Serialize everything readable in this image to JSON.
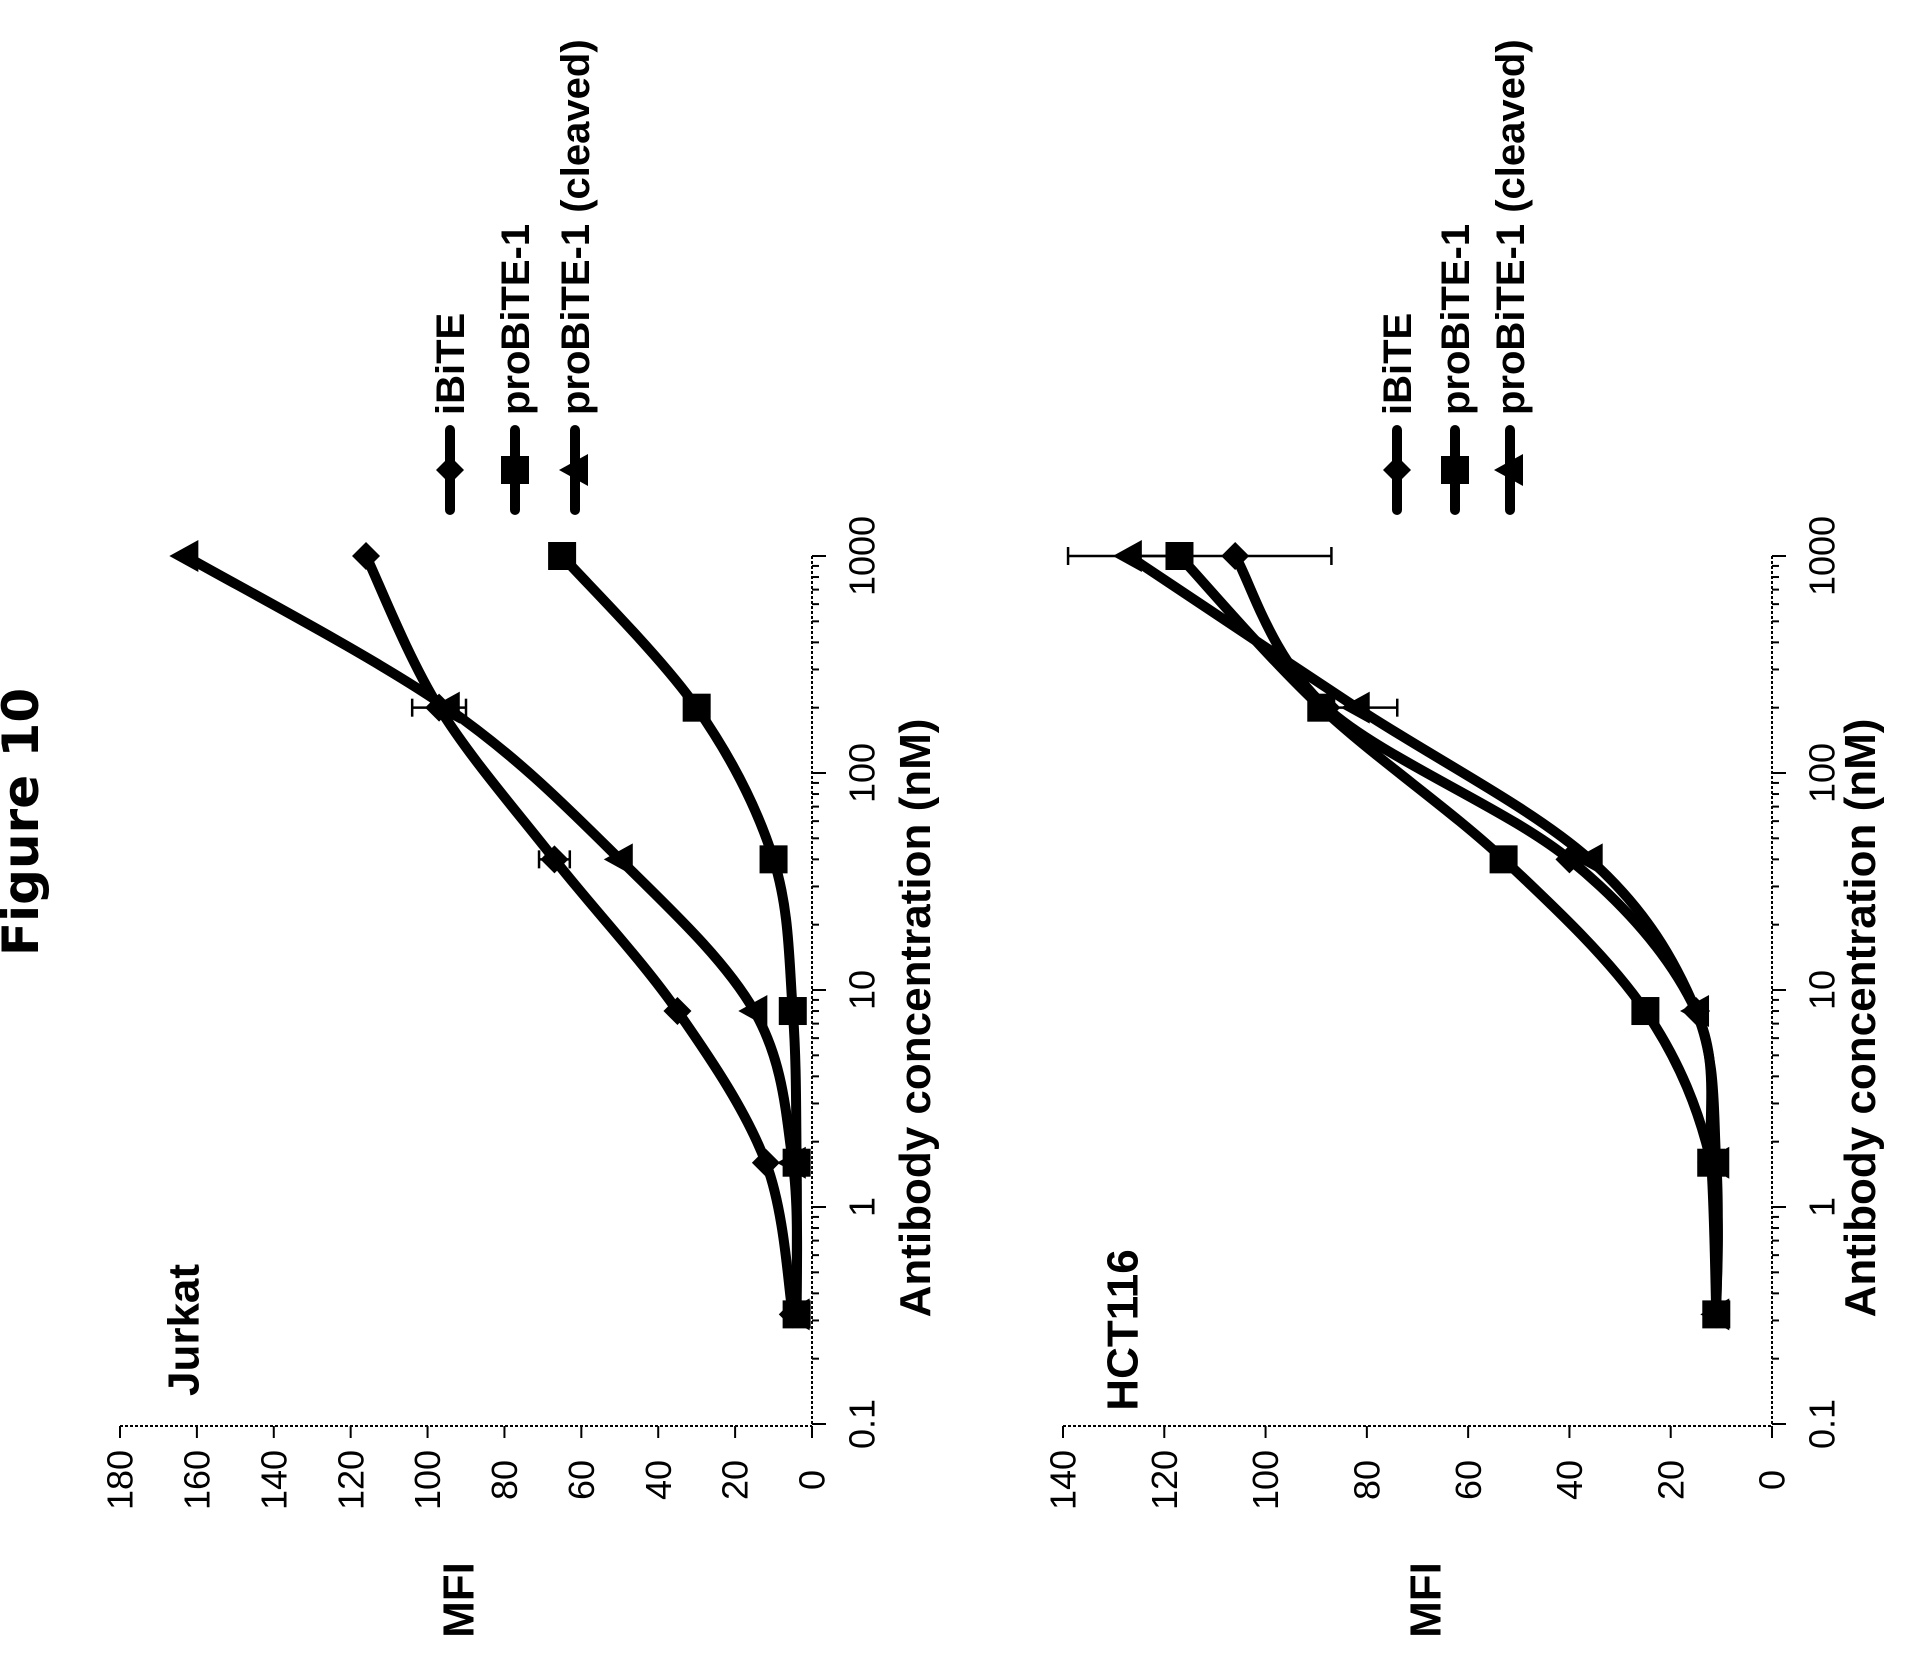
{
  "figure_title": "Figure 10",
  "chart_data": [
    {
      "type": "line",
      "panel_label": "Jurkat",
      "xlabel": "Antibody concentration (nM)",
      "ylabel": "MFI",
      "x_scale": "log",
      "xlim": [
        0.1,
        1000
      ],
      "ylim": [
        0,
        180
      ],
      "x_ticks": [
        "0.1",
        "1",
        "10",
        "100",
        "1000"
      ],
      "y_ticks": [
        "0",
        "20",
        "40",
        "60",
        "80",
        "100",
        "120",
        "140",
        "160",
        "180"
      ],
      "x": [
        0.32,
        1.6,
        8,
        40,
        200,
        1000
      ],
      "legend_position": "right",
      "series": [
        {
          "name": "iBiTE",
          "marker": "diamond",
          "values": [
            5,
            12,
            35,
            67,
            97,
            116
          ],
          "error": [
            0,
            0,
            0,
            4,
            7,
            0
          ]
        },
        {
          "name": "proBiTE-1",
          "marker": "square",
          "values": [
            4,
            4,
            5,
            10,
            30,
            65
          ],
          "error": [
            0,
            0,
            0,
            0,
            0,
            0
          ]
        },
        {
          "name": "proBiTE-1 (cleaved)",
          "marker": "triangle",
          "values": [
            4,
            5,
            15,
            50,
            95,
            163
          ],
          "error": [
            0,
            0,
            0,
            0,
            0,
            0
          ]
        }
      ]
    },
    {
      "type": "line",
      "panel_label": "HCT116",
      "xlabel": "Antibody concentration (nM)",
      "ylabel": "MFI",
      "x_scale": "log",
      "xlim": [
        0.1,
        1000
      ],
      "ylim": [
        0,
        140
      ],
      "x_ticks": [
        "0.1",
        "1",
        "10",
        "100",
        "1000"
      ],
      "y_ticks": [
        "0",
        "20",
        "40",
        "60",
        "80",
        "100",
        "120",
        "140"
      ],
      "x": [
        0.32,
        1.6,
        8,
        40,
        200,
        1000
      ],
      "legend_position": "right",
      "series": [
        {
          "name": "iBiTE",
          "marker": "diamond",
          "values": [
            11,
            12,
            15,
            40,
            88,
            106
          ],
          "error": [
            0,
            0,
            0,
            0,
            0,
            19
          ]
        },
        {
          "name": "proBiTE-1",
          "marker": "square",
          "values": [
            11,
            12,
            25,
            53,
            89,
            117
          ],
          "error": [
            0,
            0,
            0,
            0,
            0,
            0
          ]
        },
        {
          "name": "proBiTE-1 (cleaved)",
          "marker": "triangle",
          "values": [
            11,
            11,
            15,
            36,
            82,
            127
          ],
          "error": [
            0,
            0,
            0,
            0,
            8,
            12
          ]
        }
      ]
    }
  ]
}
